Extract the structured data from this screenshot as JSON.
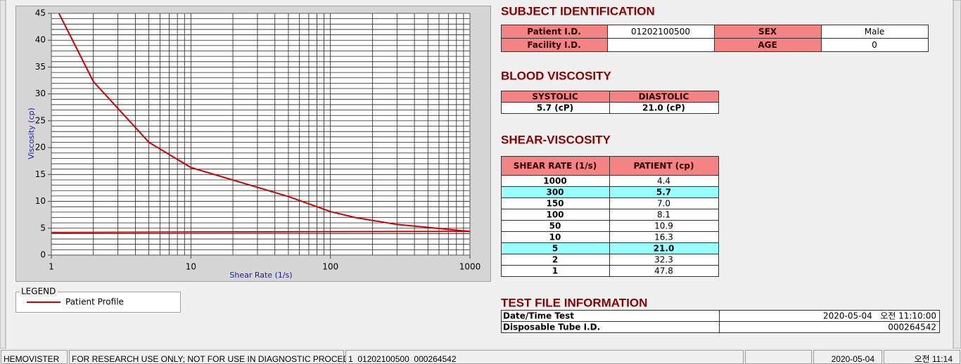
{
  "chart_data": {
    "type": "line",
    "x_label": "Shear Rate (1/s)",
    "y_label": "Viscosity (cp)",
    "log_x": true,
    "xlim": [
      1,
      1000
    ],
    "ylim": [
      0,
      45
    ],
    "xticks": [
      1,
      10,
      100,
      1000
    ],
    "yticks": [
      0,
      5,
      10,
      15,
      20,
      25,
      30,
      35,
      40,
      45
    ],
    "x_minor_ticks": [
      2,
      3,
      4,
      5,
      6,
      7,
      8,
      9,
      20,
      30,
      40,
      50,
      60,
      70,
      80,
      90,
      200,
      300,
      400,
      500,
      600,
      700,
      800,
      900
    ],
    "y_minor_ticks": [
      1,
      2,
      3,
      4,
      6,
      7,
      8,
      9,
      11,
      12,
      13,
      14,
      16,
      17,
      18,
      19,
      21,
      22,
      23,
      24,
      26,
      27,
      28,
      29,
      31,
      32,
      33,
      34,
      36,
      37,
      38,
      39,
      41,
      42,
      43,
      44
    ],
    "grid": true,
    "legend_title": "LEGEND",
    "series": [
      {
        "name": "Patient Profile",
        "color": "#d40000",
        "x": [
          1,
          2,
          5,
          10,
          50,
          100,
          150,
          300,
          1000
        ],
        "values": [
          47.8,
          32.3,
          21.0,
          16.3,
          10.9,
          8.1,
          7.0,
          5.7,
          4.4
        ]
      },
      {
        "color": "#d40000",
        "x": [
          1,
          12,
          1000
        ],
        "values": [
          4.2,
          4.3,
          4.4
        ]
      }
    ]
  },
  "subject": {
    "title": "SUBJECT IDENTIFICATION",
    "rows": [
      [
        "Patient I.D.",
        "01202100500",
        "SEX",
        "Male"
      ],
      [
        "Facility I.D.",
        null,
        "AGE",
        "0"
      ]
    ]
  },
  "blood": {
    "title": "BLOOD VISCOSITY",
    "headers": [
      "SYSTOLIC",
      "DIASTOLIC"
    ],
    "values": [
      "5.7 (cP)",
      "21.0 (cP)"
    ]
  },
  "shear": {
    "title": "SHEAR-VISCOSITY",
    "headers": [
      "SHEAR RATE (1/s)",
      "PATIENT (cp)"
    ],
    "highlight_rows": [
      1,
      6
    ],
    "rows": [
      [
        "1000",
        "4.4"
      ],
      [
        "300",
        "5.7"
      ],
      [
        "150",
        "7.0"
      ],
      [
        "100",
        "8.1"
      ],
      [
        "50",
        "10.9"
      ],
      [
        "10",
        "16.3"
      ],
      [
        "5",
        "21.0"
      ],
      [
        "2",
        "32.3"
      ],
      [
        "1",
        "47.8"
      ]
    ]
  },
  "test_file": {
    "title": "TEST FILE INFORMATION",
    "rows": [
      [
        "Date/Time Test",
        "2020-05-04   오전 11:10:00"
      ],
      [
        "Disposable Tube I.D.",
        "000264542"
      ]
    ]
  },
  "status_bar": [
    "HEMOVISTER",
    "FOR RESEARCH USE ONLY; NOT FOR USE IN DIAGNOSTIC PROCEDURES",
    "1  01202100500  000264542",
    "2020-05-04",
    "오전 11:14"
  ]
}
